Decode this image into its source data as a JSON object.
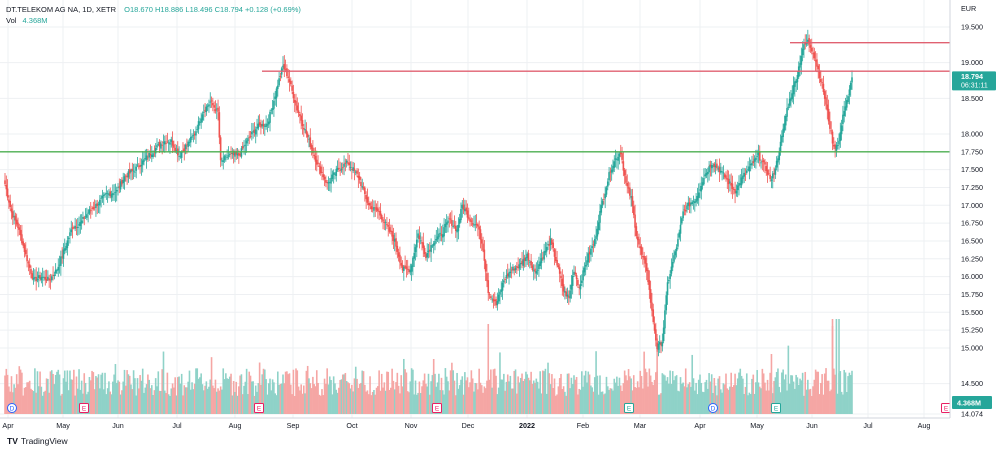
{
  "legend": {
    "symbol": "DT.TELEKOM AG NA, 1D, XETR",
    "ohlc": "O18.670  H18.886  L18.496  C18.794  +0.128 (+0.69%)",
    "vol_label": "Vol",
    "vol_value": "4.368M"
  },
  "branding": "TradingView",
  "colors": {
    "up": "#26a69a",
    "down": "#ef5350",
    "up_vol": "#8fd2c8",
    "down_vol": "#f5a6a4",
    "resistance": "#e06171",
    "support": "#4caf50",
    "grid": "#eef0f3"
  },
  "chart_data": {
    "type": "candlestick",
    "currency": "EUR",
    "ylim": [
      14.0,
      19.7
    ],
    "y_ticks": [
      "19.500",
      "19.000",
      "18.500",
      "18.000",
      "17.750",
      "17.500",
      "17.250",
      "17.000",
      "16.750",
      "16.500",
      "16.250",
      "16.000",
      "15.750",
      "15.500",
      "15.250",
      "15.000",
      "14.500",
      "14.074"
    ],
    "x_ticks": [
      "Apr",
      "May",
      "Jun",
      "Jul",
      "Aug",
      "Sep",
      "Oct",
      "Nov",
      "Dec",
      "2022",
      "Feb",
      "Mar",
      "Apr",
      "May",
      "Jun",
      "Jul",
      "Aug"
    ],
    "last_price": "18.794",
    "countdown": "06:31:11",
    "last_volume": "4.368M",
    "horizontal_lines": [
      {
        "price": 19.28,
        "color": "resistance"
      },
      {
        "price": 18.88,
        "color": "resistance"
      },
      {
        "price": 17.75,
        "color": "support"
      }
    ],
    "event_markers": [
      "D",
      "E",
      "E",
      "E",
      "E",
      "E",
      "D",
      "E",
      "E"
    ],
    "anchors": [
      [
        0,
        17.3
      ],
      [
        5,
        16.9
      ],
      [
        10,
        16.7
      ],
      [
        16,
        16.3
      ],
      [
        22,
        15.95
      ],
      [
        28,
        16.0
      ],
      [
        34,
        15.95
      ],
      [
        40,
        16.1
      ],
      [
        46,
        16.4
      ],
      [
        52,
        16.7
      ],
      [
        58,
        16.75
      ],
      [
        64,
        16.9
      ],
      [
        70,
        17.0
      ],
      [
        78,
        17.15
      ],
      [
        86,
        17.2
      ],
      [
        92,
        17.4
      ],
      [
        100,
        17.5
      ],
      [
        108,
        17.65
      ],
      [
        116,
        17.8
      ],
      [
        122,
        17.9
      ],
      [
        128,
        17.9
      ],
      [
        134,
        17.7
      ],
      [
        140,
        17.85
      ],
      [
        146,
        18.0
      ],
      [
        152,
        18.3
      ],
      [
        158,
        18.45
      ],
      [
        164,
        18.3
      ],
      [
        166,
        17.6
      ],
      [
        172,
        17.7
      ],
      [
        180,
        17.7
      ],
      [
        188,
        17.95
      ],
      [
        194,
        18.1
      ],
      [
        202,
        18.15
      ],
      [
        206,
        18.4
      ],
      [
        210,
        18.7
      ],
      [
        214,
        18.95
      ],
      [
        218,
        18.8
      ],
      [
        224,
        18.4
      ],
      [
        232,
        18.0
      ],
      [
        240,
        17.6
      ],
      [
        248,
        17.3
      ],
      [
        256,
        17.5
      ],
      [
        264,
        17.6
      ],
      [
        272,
        17.4
      ],
      [
        280,
        17.0
      ],
      [
        288,
        16.9
      ],
      [
        294,
        16.7
      ],
      [
        300,
        16.5
      ],
      [
        306,
        16.1
      ],
      [
        312,
        16.1
      ],
      [
        318,
        16.6
      ],
      [
        324,
        16.3
      ],
      [
        330,
        16.5
      ],
      [
        336,
        16.6
      ],
      [
        342,
        16.8
      ],
      [
        348,
        16.65
      ],
      [
        352,
        17.0
      ],
      [
        358,
        16.8
      ],
      [
        364,
        16.7
      ],
      [
        368,
        16.4
      ],
      [
        372,
        15.8
      ],
      [
        378,
        15.6
      ],
      [
        384,
        15.95
      ],
      [
        390,
        16.1
      ],
      [
        396,
        16.15
      ],
      [
        402,
        16.3
      ],
      [
        408,
        16.05
      ],
      [
        414,
        16.3
      ],
      [
        420,
        16.5
      ],
      [
        426,
        16.1
      ],
      [
        430,
        15.8
      ],
      [
        434,
        15.7
      ],
      [
        438,
        16.1
      ],
      [
        442,
        15.85
      ],
      [
        448,
        16.25
      ],
      [
        454,
        16.5
      ],
      [
        458,
        16.9
      ],
      [
        462,
        17.2
      ],
      [
        466,
        17.5
      ],
      [
        470,
        17.65
      ],
      [
        474,
        17.75
      ],
      [
        478,
        17.3
      ],
      [
        482,
        17.1
      ],
      [
        486,
        16.6
      ],
      [
        490,
        16.3
      ],
      [
        494,
        16.1
      ],
      [
        498,
        15.5
      ],
      [
        502,
        15.0
      ],
      [
        506,
        15.1
      ],
      [
        510,
        15.9
      ],
      [
        514,
        16.2
      ],
      [
        518,
        16.5
      ],
      [
        522,
        16.9
      ],
      [
        526,
        17.0
      ],
      [
        532,
        17.1
      ],
      [
        538,
        17.4
      ],
      [
        544,
        17.6
      ],
      [
        550,
        17.5
      ],
      [
        556,
        17.35
      ],
      [
        562,
        17.2
      ],
      [
        568,
        17.4
      ],
      [
        574,
        17.55
      ],
      [
        580,
        17.7
      ],
      [
        586,
        17.5
      ],
      [
        590,
        17.35
      ],
      [
        594,
        17.6
      ],
      [
        598,
        17.95
      ],
      [
        602,
        18.35
      ],
      [
        606,
        18.6
      ],
      [
        610,
        18.85
      ],
      [
        614,
        19.2
      ],
      [
        618,
        19.3
      ],
      [
        622,
        19.15
      ],
      [
        626,
        18.9
      ],
      [
        630,
        18.6
      ],
      [
        634,
        18.2
      ],
      [
        638,
        17.8
      ],
      [
        642,
        17.9
      ],
      [
        646,
        18.35
      ],
      [
        650,
        18.6
      ],
      [
        652,
        18.79
      ]
    ]
  }
}
